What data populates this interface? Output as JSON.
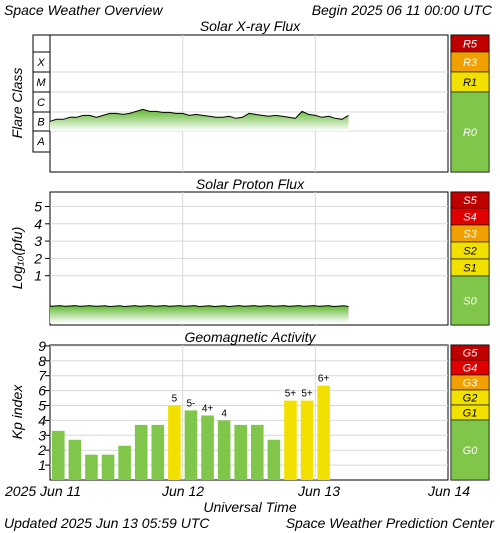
{
  "header": {
    "title": "Space Weather Overview",
    "begin": "Begin 2025 06 11 00:00 UTC"
  },
  "footer": {
    "updated": "Updated 2025 Jun 13 05:59 UTC",
    "credit": "Space Weather Prediction Center"
  },
  "xaxis": {
    "label": "Universal Time",
    "ticks": [
      "2025 Jun 11",
      "Jun 12",
      "Jun 13",
      "Jun 14"
    ]
  },
  "colors": {
    "green": "#7fc64a",
    "yellow": "#f2e000",
    "orange": "#f0a000",
    "red": "#e00000",
    "dark_red": "#c00000",
    "plot_line": "#000000"
  },
  "chart_data": [
    {
      "type": "area",
      "title": "Solar X-ray Flux",
      "ylabel": "Flare Class",
      "y_categories": [
        "A",
        "B",
        "C",
        "M",
        "X"
      ],
      "x_range_days": [
        0,
        3
      ],
      "series": [
        {
          "x_days": [
            0.0,
            0.05,
            0.1,
            0.15,
            0.2,
            0.25,
            0.3,
            0.35,
            0.4,
            0.45,
            0.5,
            0.55,
            0.6,
            0.65,
            0.7,
            0.75,
            0.8,
            0.85,
            0.9,
            0.95,
            1.0,
            1.05,
            1.1,
            1.15,
            1.2,
            1.25,
            1.3,
            1.35,
            1.4,
            1.45,
            1.5,
            1.55,
            1.6,
            1.65,
            1.7,
            1.75,
            1.8,
            1.85,
            1.9,
            1.95,
            2.0,
            2.05,
            2.1,
            2.15,
            2.2,
            2.25
          ],
          "class_level": [
            1.5,
            1.6,
            1.6,
            1.7,
            1.7,
            1.8,
            1.8,
            1.7,
            1.8,
            1.9,
            1.9,
            1.85,
            1.9,
            2.0,
            2.1,
            2.0,
            2.0,
            1.95,
            1.95,
            1.9,
            1.9,
            1.8,
            1.85,
            1.8,
            1.75,
            1.7,
            1.7,
            1.75,
            1.65,
            1.7,
            1.9,
            1.85,
            1.8,
            1.75,
            1.8,
            1.75,
            1.7,
            1.65,
            2.0,
            1.85,
            1.8,
            1.7,
            1.75,
            1.65,
            1.6,
            1.8
          ]
        }
      ],
      "scale": [
        {
          "label": "R5",
          "color": "#c00000"
        },
        {
          "label": "R3",
          "color": "#f0a000"
        },
        {
          "label": "R1",
          "color": "#f2e000"
        },
        {
          "label": "R0",
          "color": "#7fc64a"
        }
      ]
    },
    {
      "type": "area",
      "title": "Solar Proton Flux",
      "ylabel": "Log10(pfu)",
      "yticks": [
        1,
        2,
        3,
        4,
        5
      ],
      "x_range_days": [
        0,
        3
      ],
      "series": [
        {
          "x_days": [
            0.0,
            0.25,
            0.5,
            0.75,
            1.0,
            1.25,
            1.5,
            1.75,
            2.0,
            2.25
          ],
          "log10_pfu": [
            -0.75,
            -0.75,
            -0.76,
            -0.75,
            -0.75,
            -0.76,
            -0.75,
            -0.75,
            -0.75,
            -0.76
          ]
        }
      ],
      "scale": [
        {
          "label": "S5",
          "color": "#c00000"
        },
        {
          "label": "S4",
          "color": "#e00000"
        },
        {
          "label": "S3",
          "color": "#f0a000"
        },
        {
          "label": "S2",
          "color": "#f2e000"
        },
        {
          "label": "S1",
          "color": "#f2e000"
        },
        {
          "label": "S0",
          "color": "#7fc64a"
        }
      ]
    },
    {
      "type": "bar",
      "title": "Geomagnetic Activity",
      "ylabel": "Kp index",
      "ylim": [
        0,
        9
      ],
      "yticks": [
        1,
        2,
        3,
        4,
        5,
        6,
        7,
        8,
        9
      ],
      "x_range_days": [
        0,
        3
      ],
      "bars": [
        {
          "kp": 3.3,
          "label": ""
        },
        {
          "kp": 2.7,
          "label": ""
        },
        {
          "kp": 1.7,
          "label": ""
        },
        {
          "kp": 1.7,
          "label": ""
        },
        {
          "kp": 2.3,
          "label": ""
        },
        {
          "kp": 3.7,
          "label": ""
        },
        {
          "kp": 3.7,
          "label": ""
        },
        {
          "kp": 5.0,
          "label": "5"
        },
        {
          "kp": 4.67,
          "label": "5-"
        },
        {
          "kp": 4.33,
          "label": "4+"
        },
        {
          "kp": 4.0,
          "label": "4"
        },
        {
          "kp": 3.7,
          "label": ""
        },
        {
          "kp": 3.7,
          "label": ""
        },
        {
          "kp": 2.7,
          "label": ""
        },
        {
          "kp": 5.33,
          "label": "5+"
        },
        {
          "kp": 5.33,
          "label": "5+"
        },
        {
          "kp": 6.33,
          "label": "6+"
        }
      ],
      "scale": [
        {
          "label": "G5",
          "color": "#c00000"
        },
        {
          "label": "G4",
          "color": "#e00000"
        },
        {
          "label": "G3",
          "color": "#f0a000"
        },
        {
          "label": "G2",
          "color": "#f2e000"
        },
        {
          "label": "G1",
          "color": "#f2e000"
        },
        {
          "label": "G0",
          "color": "#7fc64a"
        }
      ]
    }
  ]
}
